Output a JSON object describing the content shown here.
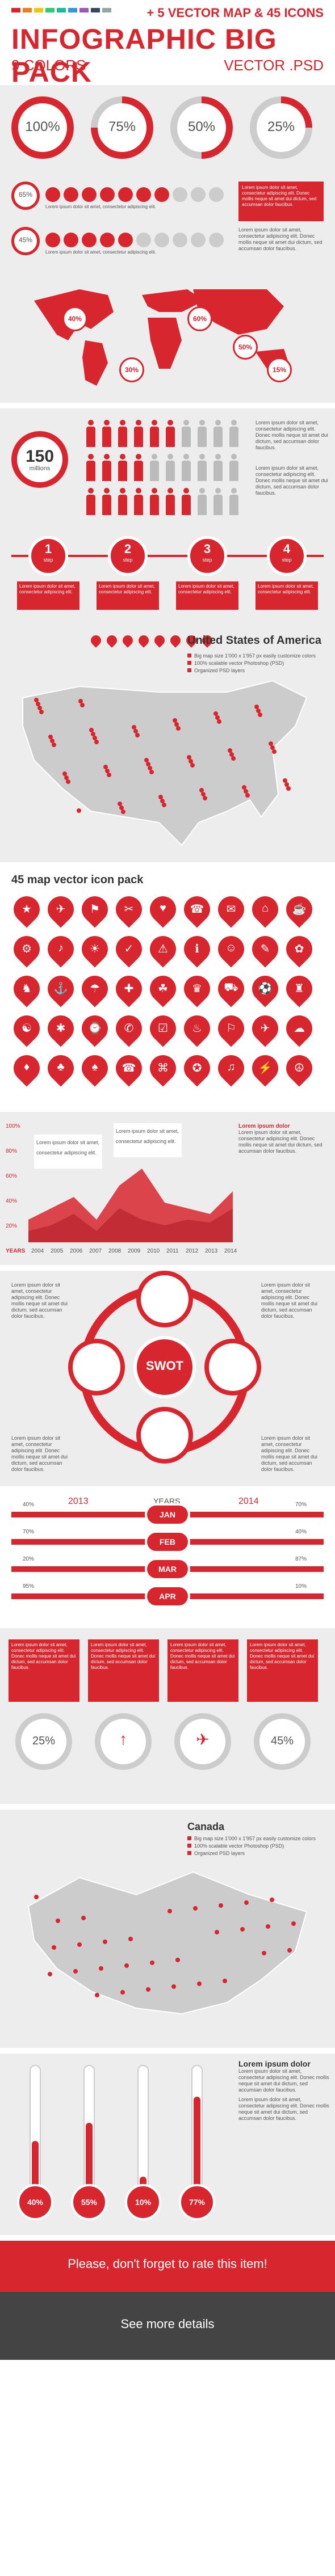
{
  "header": {
    "subtitle": "+ 5 VECTOR MAP & 45 ICONS",
    "title": "INFOGRAPHIC BIG PACK",
    "colors_label": "9 COLORS",
    "format_label": "VECTOR .PSD",
    "swatches": [
      "#d7262e",
      "#e67e22",
      "#f1c40f",
      "#2ecc71",
      "#1abc9c",
      "#3498db",
      "#9b59b6",
      "#34495e",
      "#95a5a6"
    ]
  },
  "percent_rings": [
    {
      "label": "100%",
      "value": 100
    },
    {
      "label": "75%",
      "value": 75
    },
    {
      "label": "50%",
      "value": 50
    },
    {
      "label": "25%",
      "value": 25
    }
  ],
  "dot_rows": [
    {
      "label": "65%",
      "value": 65
    },
    {
      "label": "45%",
      "value": 45
    }
  ],
  "lorem_block": "Lorem ipsum dolor sit amet, consectetur adipiscing elit. Donec mollis neque sit amet dui dictum, sed accumsan dolor faucibus.",
  "lorem_short": "Lorem ipsum dolor sit amet, consectetur adipiscing elit.",
  "world_map": {
    "bubbles": [
      "40%",
      "30%",
      "60%",
      "50%",
      "15%"
    ]
  },
  "people": {
    "value": "150",
    "unit": "millions"
  },
  "steps": [
    {
      "number": "1",
      "label": "step"
    },
    {
      "number": "2",
      "label": "step"
    },
    {
      "number": "3",
      "label": "step"
    },
    {
      "number": "4",
      "label": "step"
    }
  ],
  "usa": {
    "title": "United States of America",
    "features": [
      "Big map size 1'000 x 1'957 px easily customize colors",
      "100% scalable vector Photoshop (PSD)",
      "Organized PSD layers"
    ]
  },
  "icons": {
    "title": "45 map vector icon pack"
  },
  "area_chart": {
    "title": "Lorem ipsum dolor",
    "y_ticks": [
      "100%",
      "80%",
      "60%",
      "40%",
      "20%"
    ],
    "x_label": "YEARS",
    "years": [
      "2004",
      "2005",
      "2006",
      "2007",
      "2008",
      "2009",
      "2010",
      "2011",
      "2012",
      "2013",
      "2014"
    ],
    "callout_left": "Lorem ipsum dolor sit amet, consectetur adipiscing elit.",
    "callout_mid": "Lorem ipsum dolor sit amet, consectetur adipiscing elit."
  },
  "swot": {
    "center": "SWOT"
  },
  "years_compare": {
    "title": "YEARS",
    "left_year": "2013",
    "right_year": "2014",
    "rows": [
      {
        "month": "JAN",
        "left": "40%",
        "right": "70%"
      },
      {
        "month": "FEB",
        "left": "70%",
        "right": "40%"
      },
      {
        "month": "MAR",
        "left": "20%",
        "right": "87%"
      },
      {
        "month": "APR",
        "left": "95%",
        "right": "10%"
      }
    ]
  },
  "gauges": [
    {
      "label": "25%"
    },
    {
      "label": ""
    },
    {
      "label": ""
    },
    {
      "label": "45%"
    }
  ],
  "canada": {
    "title": "Canada",
    "features": [
      "Big map size 1'000 x 1'957 px easily customize colors",
      "100% scalable vector Photoshop (PSD)",
      "Organized PSD layers"
    ]
  },
  "thermometers": [
    {
      "label": "40%",
      "value": 40
    },
    {
      "label": "55%",
      "value": 55
    },
    {
      "label": "10%",
      "value": 10
    },
    {
      "label": "77%",
      "value": 77
    }
  ],
  "footer": {
    "rate": "Please, don't forget to rate this item!",
    "more": "See more details"
  }
}
